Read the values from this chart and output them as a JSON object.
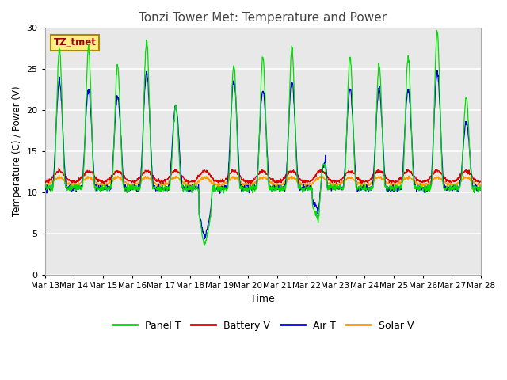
{
  "title": "Tonzi Tower Met: Temperature and Power",
  "xlabel": "Time",
  "ylabel": "Temperature (C) / Power (V)",
  "annotation": "TZ_tmet",
  "ylim": [
    0,
    30
  ],
  "yticks": [
    0,
    5,
    10,
    15,
    20,
    25,
    30
  ],
  "x_labels": [
    "Mar 13",
    "Mar 14",
    "Mar 15",
    "Mar 16",
    "Mar 17",
    "Mar 18",
    "Mar 19",
    "Mar 20",
    "Mar 21",
    "Mar 22",
    "Mar 23",
    "Mar 24",
    "Mar 25",
    "Mar 26",
    "Mar 27",
    "Mar 28"
  ],
  "legend": [
    {
      "label": "Panel T",
      "color": "#00dd00"
    },
    {
      "label": "Battery V",
      "color": "#dd0000"
    },
    {
      "label": "Air T",
      "color": "#0000dd"
    },
    {
      "label": "Solar V",
      "color": "#ff9900"
    }
  ],
  "fig_bg_color": "#ffffff",
  "plot_bg_color": "#e8e8e8",
  "grid_color": "#ffffff",
  "title_fontsize": 11,
  "annotation_box_facecolor": "#ffee88",
  "annotation_box_edgecolor": "#aa8800",
  "annotation_text_color": "#990000"
}
